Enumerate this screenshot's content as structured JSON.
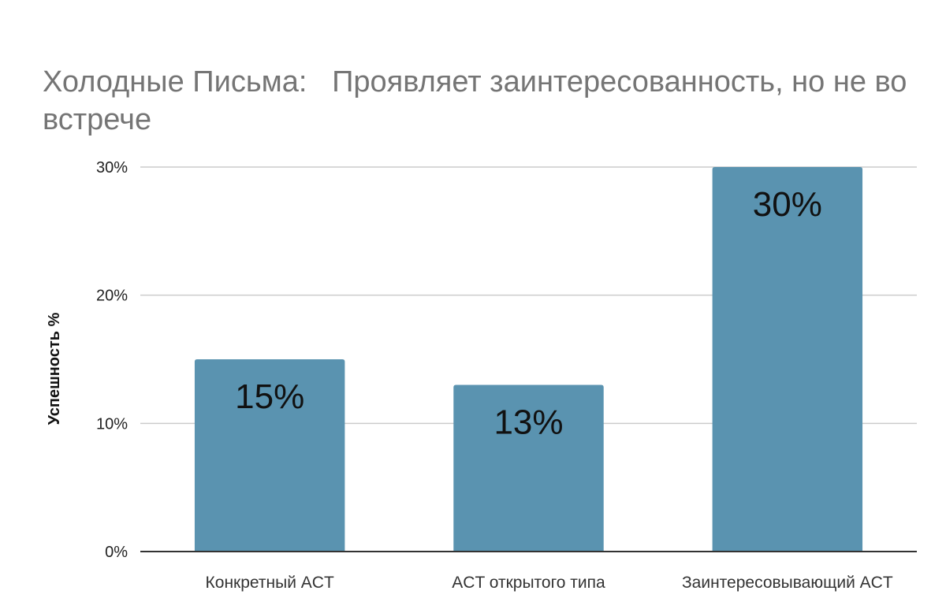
{
  "chart_data": {
    "type": "bar",
    "title": "Холодные Письма:   Проявляет заинтересованность, но не во встрече",
    "xlabel": "",
    "ylabel": "Успешность %",
    "categories": [
      "Конкретный ACT",
      "ACT открытого типа",
      "Заинтересовывающий ACT"
    ],
    "values": [
      15,
      13,
      30
    ],
    "data_labels": [
      "15%",
      "13%",
      "30%"
    ],
    "y_ticks": [
      "0%",
      "10%",
      "20%",
      "30%"
    ],
    "ylim": [
      0,
      30
    ],
    "grid": true,
    "legend": "none",
    "bar_color": "#5a93b0"
  }
}
